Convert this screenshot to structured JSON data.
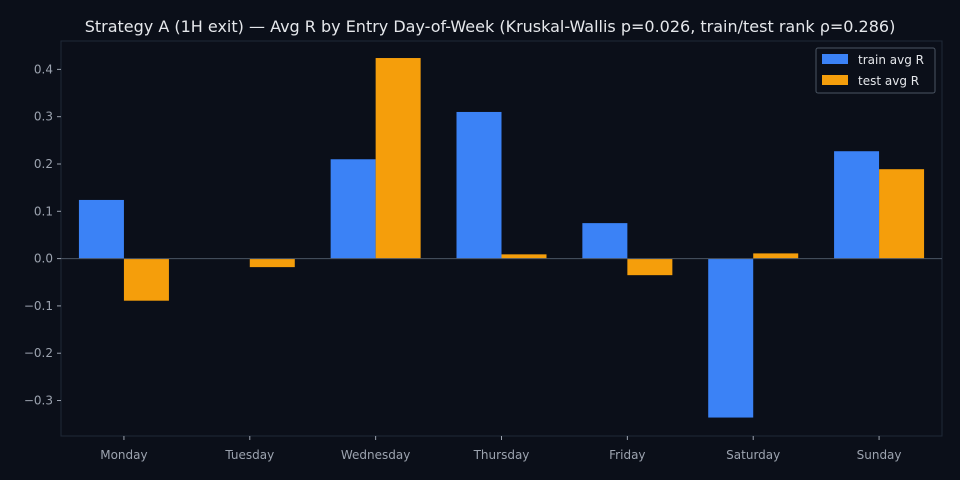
{
  "colors": {
    "background": "#0b0f19",
    "axes_border": "#1f2937",
    "zero_line": "#4b5563",
    "text": "#e5e7eb",
    "tick_text": "#9ca3af"
  },
  "chart_data": {
    "type": "bar",
    "title": "Strategy A (1H exit) — Avg R by Entry Day-of-Week (Kruskal-Wallis p=0.026, train/test rank ρ=0.286)",
    "xlabel": "",
    "ylabel": "",
    "categories": [
      "Monday",
      "Tuesday",
      "Wednesday",
      "Thursday",
      "Friday",
      "Saturday",
      "Sunday"
    ],
    "series": [
      {
        "name": "train avg R",
        "color": "#3b82f6",
        "values": [
          0.124,
          0.0,
          0.21,
          0.31,
          0.075,
          -0.336,
          0.227
        ]
      },
      {
        "name": "test avg R",
        "color": "#f59e0b",
        "values": [
          -0.089,
          -0.018,
          0.424,
          0.009,
          -0.035,
          0.011,
          0.189
        ]
      }
    ],
    "ylim": [
      -0.375,
      0.46
    ],
    "yticks": [
      -0.3,
      -0.2,
      -0.1,
      0.0,
      0.1,
      0.2,
      0.3,
      0.4
    ],
    "ytick_labels": [
      "−0.3",
      "−0.2",
      "−0.1",
      "0.0",
      "0.1",
      "0.2",
      "0.3",
      "0.4"
    ],
    "grid": false,
    "legend_position": "top-right"
  }
}
